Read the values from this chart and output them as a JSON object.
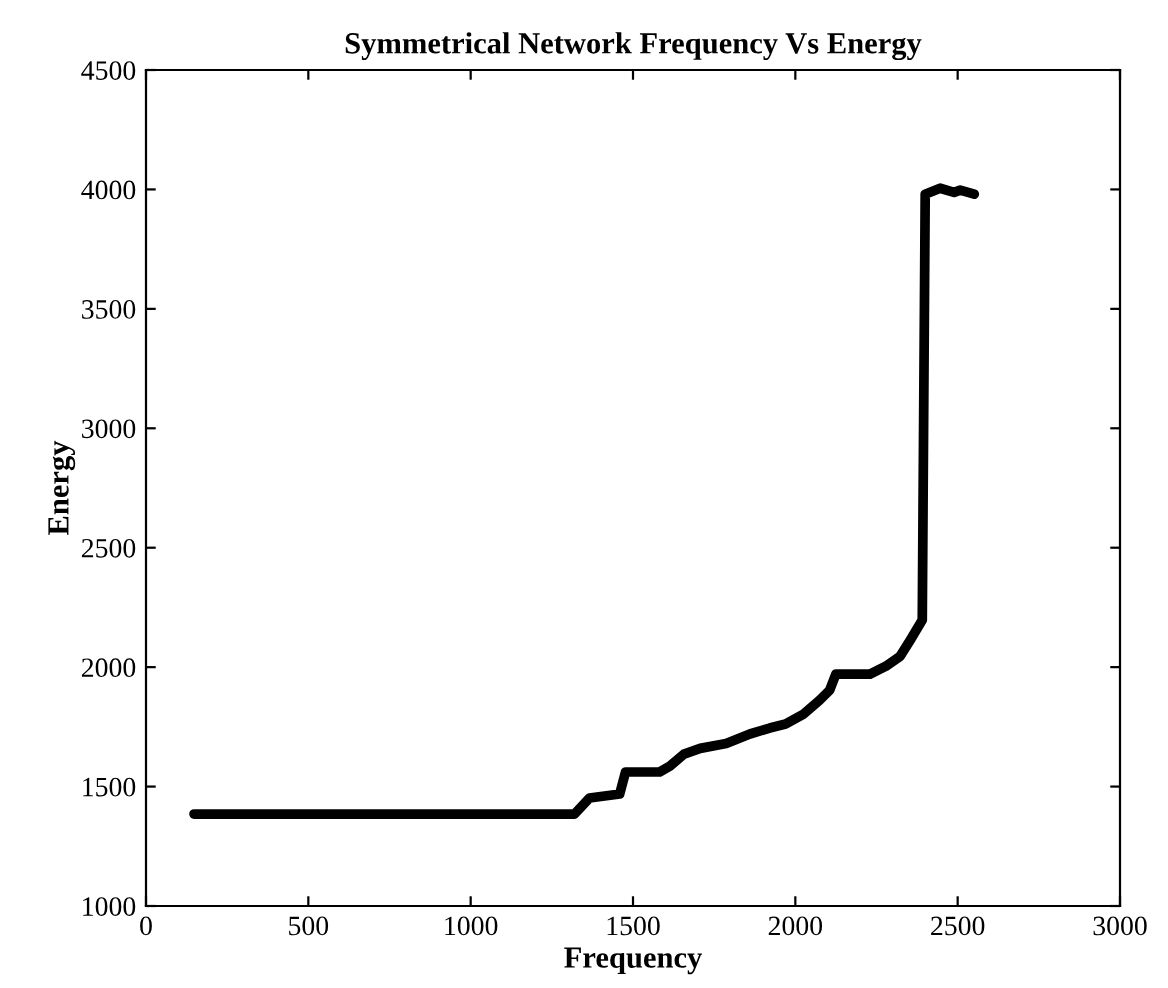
{
  "chart_data": {
    "type": "line",
    "title": "Symmetrical Network Frequency Vs Energy",
    "xlabel": "Frequency",
    "ylabel": "Energy",
    "x": [
      148,
      1320,
      1366,
      1459,
      1477,
      1582,
      1614,
      1657,
      1707,
      1787,
      1860,
      1921,
      1970,
      2026,
      2075,
      2106,
      2125,
      2230,
      2279,
      2323,
      2354,
      2391,
      2400,
      2446,
      2489,
      2508,
      2551
    ],
    "series": [
      {
        "color": "#000000",
        "values": [
          1385,
          1385,
          1452,
          1469,
          1561,
          1561,
          1586,
          1636,
          1660,
          1680,
          1720,
          1745,
          1762,
          1804,
          1862,
          1904,
          1971,
          1971,
          2004,
          2046,
          2113,
          2197,
          3980,
          4005,
          3988,
          3997,
          3980
        ]
      }
    ],
    "xlim": [
      0,
      3000
    ],
    "ylim": [
      1000,
      4500
    ],
    "xticks": [
      0,
      500,
      1000,
      1500,
      2000,
      2500,
      3000
    ],
    "yticks": [
      1000,
      1500,
      2000,
      2500,
      3000,
      3500,
      4000,
      4500
    ],
    "grid": false,
    "legend": false,
    "marker": "none",
    "line_style": "solid"
  }
}
